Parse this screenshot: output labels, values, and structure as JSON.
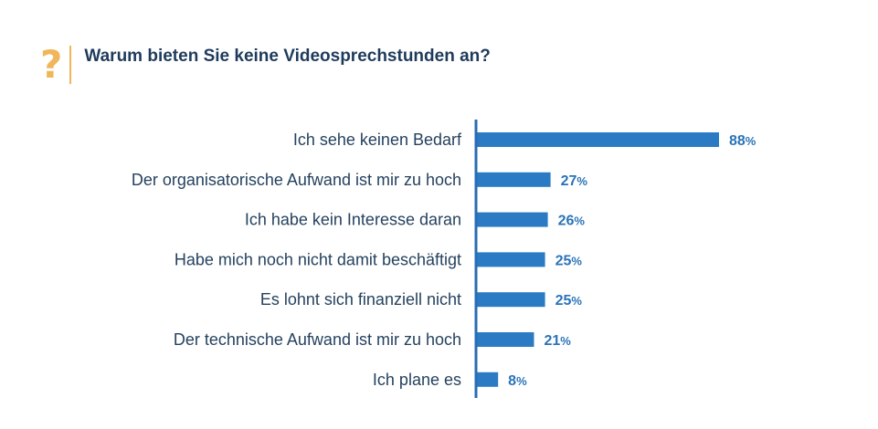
{
  "title": "Warum bieten Sie keine Videosprechstunden an?",
  "icon": "question-mark-icon",
  "colors": {
    "bar": "#2a7bc4",
    "axis": "#2a6cb3",
    "accent": "#f0b65a",
    "label": "#25425f",
    "value": "#2a73b8"
  },
  "chart_data": {
    "type": "bar",
    "orientation": "horizontal",
    "title": "Warum bieten Sie keine Videosprechstunden an?",
    "categories": [
      "Ich sehe keinen Bedarf",
      "Der organisatorische Aufwand ist mir zu hoch",
      "Ich habe kein Interesse daran",
      "Habe mich noch nicht damit beschäftigt",
      "Es lohnt sich finanziell nicht",
      "Der technische Aufwand ist mir zu hoch",
      "Ich plane es"
    ],
    "values": [
      88,
      27,
      26,
      25,
      25,
      21,
      8
    ],
    "unit": "%",
    "xlim": [
      0,
      100
    ],
    "grid": false,
    "legend": "none"
  }
}
